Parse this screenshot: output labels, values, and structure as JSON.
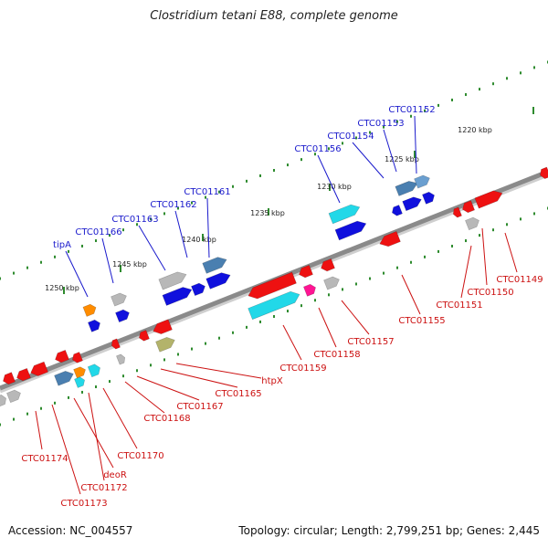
{
  "title": "Clostridium tetani E88, complete genome",
  "footer": {
    "accession": "Accession: NC_004557",
    "topology": "Topology: circular; Length: 2,799,251 bp; Genes: 2,445"
  },
  "colors": {
    "forward_label": "#1a1acc",
    "reverse_label": "#cc1111",
    "backbone": "#8a8a8a",
    "tick": "#2e8b2e"
  },
  "scale_labels": [
    "1220 kbp",
    "1225 kbp",
    "1230 kbp",
    "1235 kbp",
    "1240 kbp",
    "1245 kbp",
    "1250 kbp"
  ],
  "forward_genes": [
    "CTC01152",
    "CTC01153",
    "CTC01154",
    "CTC01156",
    "CTC01161",
    "CTC01162",
    "CTC01163",
    "CTC01166",
    "tipA"
  ],
  "reverse_genes": [
    "CTC01149",
    "CTC01150",
    "CTC01151",
    "CTC01155",
    "CTC01157",
    "CTC01158",
    "CTC01159",
    "htpX",
    "CTC01165",
    "CTC01167",
    "CTC01168",
    "CTC01170",
    "CTC01172",
    "deoR",
    "CTC01173",
    "CTC01174"
  ]
}
